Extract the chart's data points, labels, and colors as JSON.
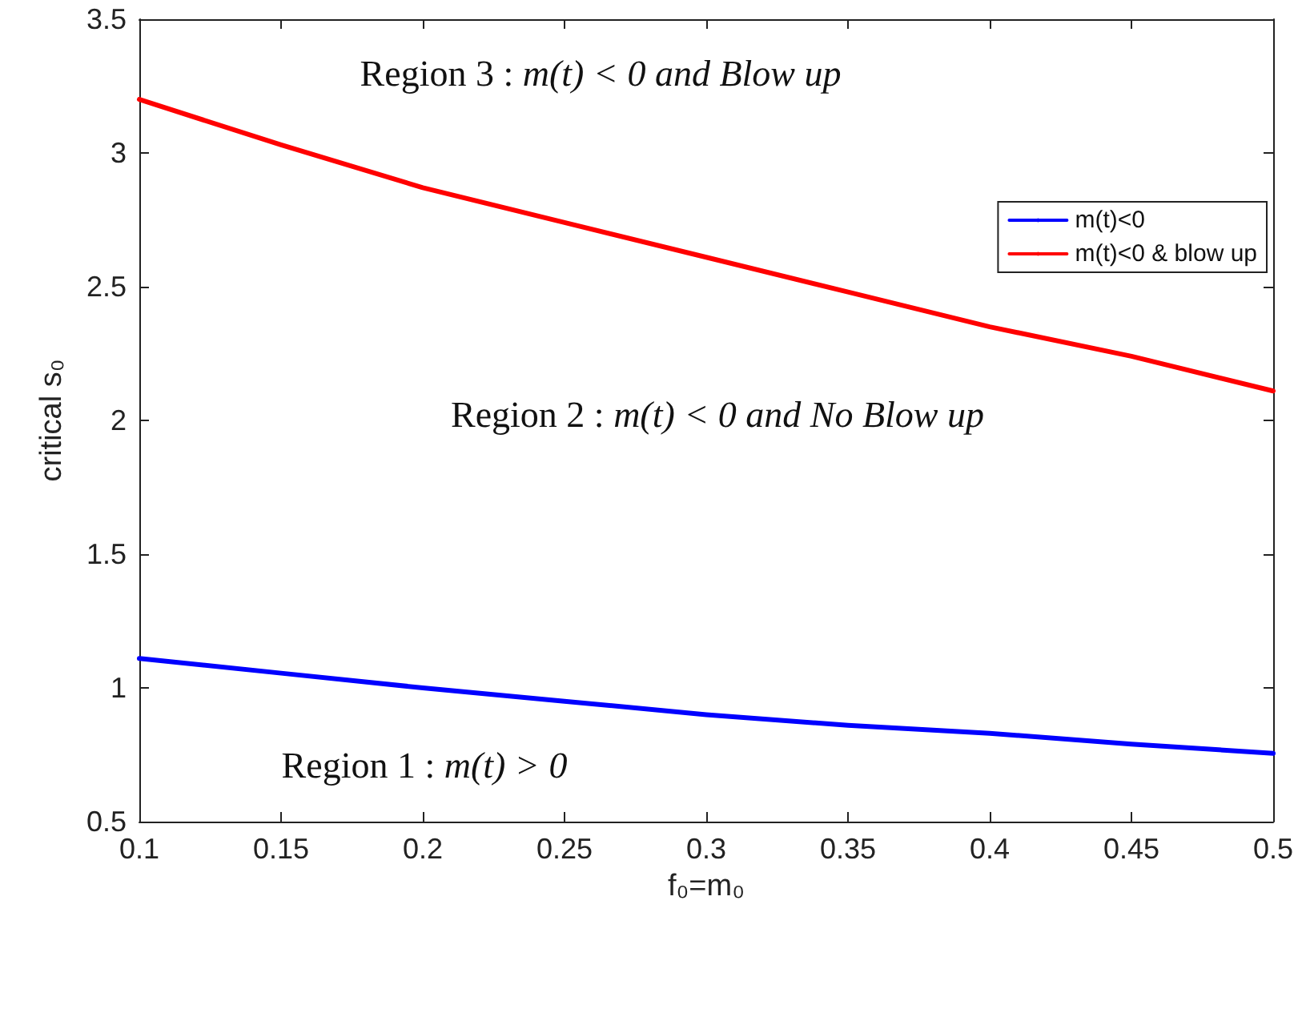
{
  "chart_data": {
    "type": "line",
    "xlabel": "f₀=m₀",
    "ylabel": "critical s₀",
    "x": [
      0.1,
      0.15,
      0.2,
      0.25,
      0.3,
      0.35,
      0.4,
      0.45,
      0.5
    ],
    "series": [
      {
        "name": "m(t)<0",
        "color": "#0000ff",
        "values": [
          1.11,
          1.055,
          1.0,
          0.95,
          0.9,
          0.86,
          0.83,
          0.79,
          0.755
        ]
      },
      {
        "name": "m(t)<0 & blow up",
        "color": "#ff0000",
        "values": [
          3.2,
          3.03,
          2.87,
          2.74,
          2.61,
          2.48,
          2.35,
          2.24,
          2.11
        ]
      }
    ],
    "xlim": [
      0.1,
      0.5
    ],
    "xticks": [
      0.1,
      0.15,
      0.2,
      0.25,
      0.3,
      0.35,
      0.4,
      0.45,
      0.5
    ],
    "ylim": [
      0.5,
      3.5
    ],
    "yticks": [
      0.5,
      1,
      1.5,
      2,
      2.5,
      3,
      3.5
    ],
    "annotations": [
      "Region 3 : m(t) < 0 and Blow up",
      "Region 2 : m(t) < 0 and No Blow up",
      "Region 1 : m(t) > 0"
    ],
    "legend": "top right",
    "grid": false,
    "marker": "none",
    "line_style": "solid"
  }
}
